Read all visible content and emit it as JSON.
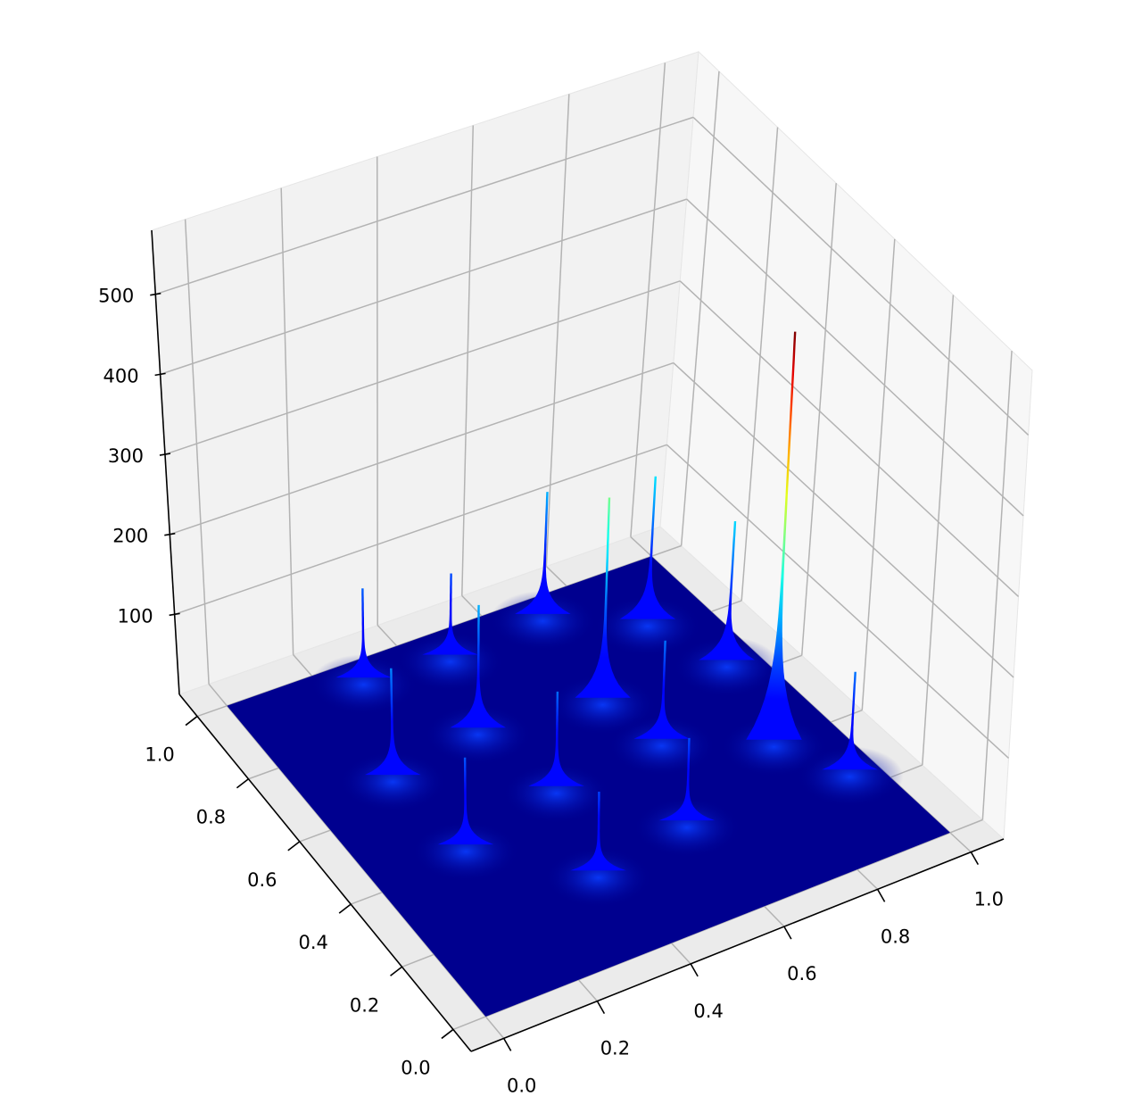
{
  "chart_data": {
    "type": "surface",
    "colormap": "jet",
    "surface_color": "#00008f",
    "grid": true,
    "xlim": [
      -0.07,
      1.07
    ],
    "ylim": [
      -0.07,
      1.07
    ],
    "zlim": [
      0,
      580
    ],
    "xticks": [
      {
        "value": 0,
        "label": "0.0"
      },
      0.2,
      0.4,
      0.6,
      0.8,
      {
        "value": 1,
        "label": "1.0"
      }
    ],
    "yticks": [
      {
        "value": 0,
        "label": "0.0"
      },
      0.2,
      0.4,
      0.6,
      0.8,
      {
        "value": 1,
        "label": "1.0"
      }
    ],
    "zticks": [
      100,
      200,
      300,
      400,
      500
    ],
    "peaks": {
      "x": [
        0.71,
        0.88,
        0.48,
        0.94,
        0.29,
        0.67,
        0.41,
        0.7,
        0.88,
        0.95,
        0.19,
        0.45,
        0.61,
        0.21,
        0.39
      ],
      "y": [
        0.95,
        0.84,
        0.93,
        0.66,
        0.95,
        0.68,
        0.72,
        0.52,
        0.41,
        0.26,
        0.68,
        0.5,
        0.29,
        0.44,
        0.25
      ],
      "z": [
        150,
        175,
        100,
        170,
        110,
        245,
        150,
        120,
        500,
        120,
        130,
        115,
        100,
        105,
        95
      ]
    }
  }
}
